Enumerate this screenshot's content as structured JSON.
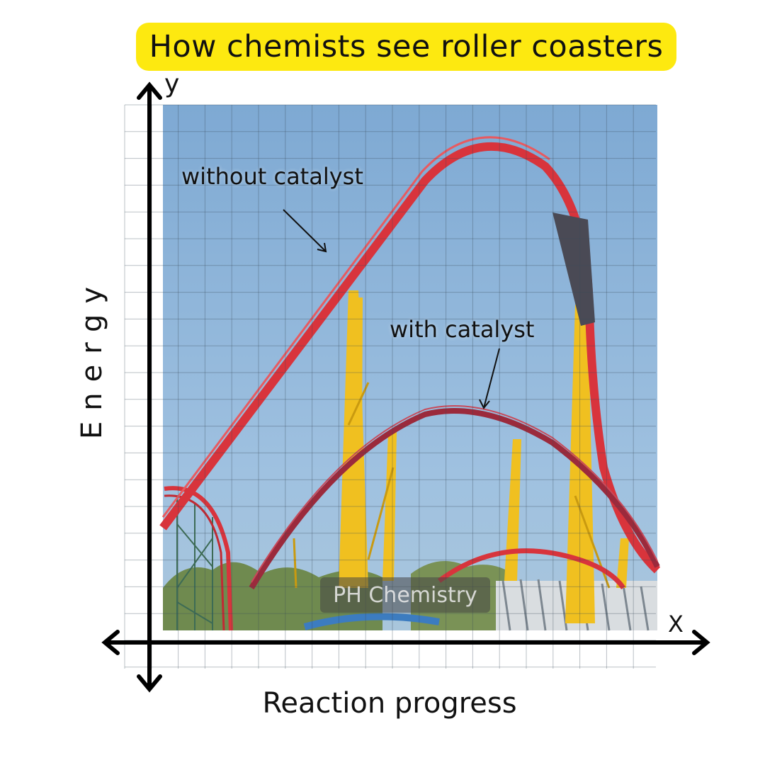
{
  "title": "How chemists see roller coasters",
  "axes": {
    "y_letter": "y",
    "x_letter": "X",
    "y_title": "Energy",
    "x_title": "Reaction progress"
  },
  "annotations": {
    "without_catalyst": "without catalyst",
    "with_catalyst": "with catalyst"
  },
  "watermark": "PH Chemistry",
  "colors": {
    "banner": "#fde910",
    "sky": "#8fb5d8",
    "track_red": "#d8343c",
    "support_yellow": "#f0c020",
    "axis": "#000000"
  },
  "icons": [
    "y-axis-arrow-icon",
    "x-axis-arrow-icon"
  ]
}
